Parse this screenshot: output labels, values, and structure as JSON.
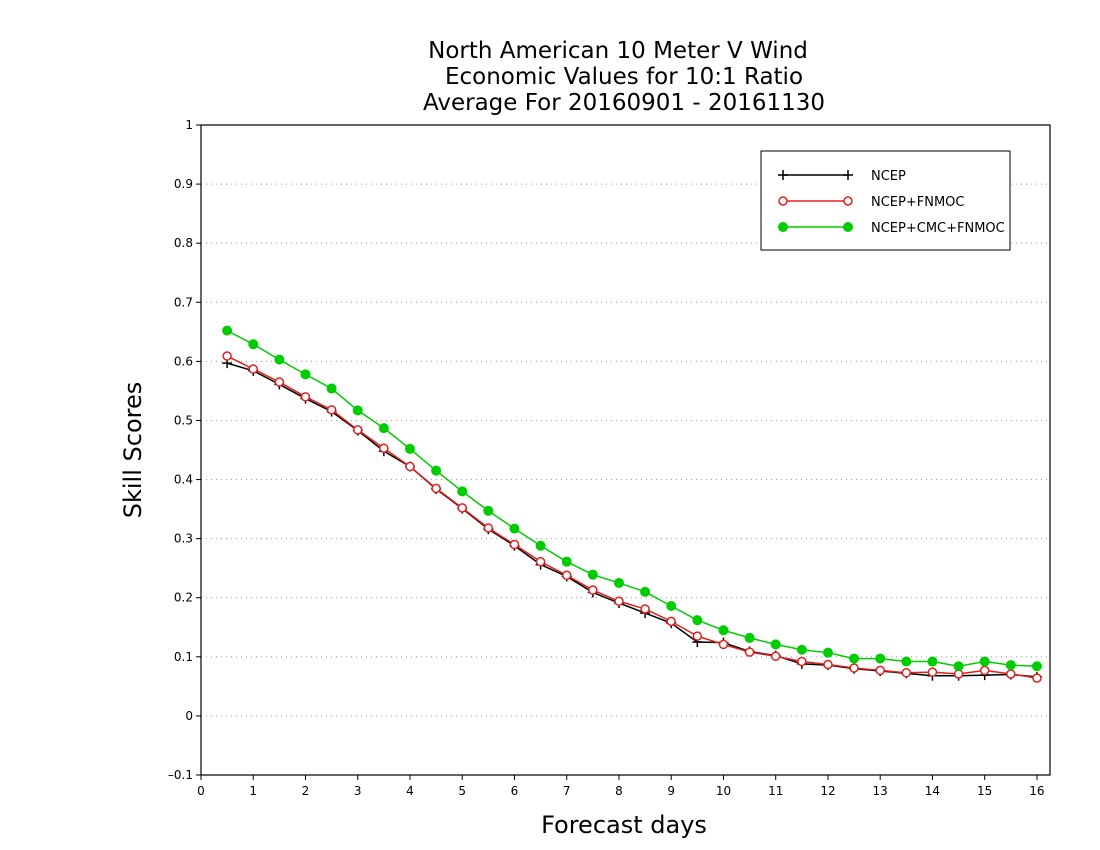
{
  "chart_data": {
    "type": "line",
    "title_lines": [
      "North American 10 Meter V Wind",
      "Economic Values for 10:1 Ratio",
      "Average For 20160901 - 20161130"
    ],
    "xlabel": "Forecast days",
    "ylabel": "Skill Scores",
    "xlim": [
      0,
      16.25
    ],
    "ylim": [
      -0.1,
      1
    ],
    "x_ticks": [
      0,
      1,
      2,
      3,
      4,
      5,
      6,
      7,
      8,
      9,
      10,
      11,
      12,
      13,
      14,
      15,
      16
    ],
    "y_ticks": [
      -0.1,
      0,
      0.1,
      0.2,
      0.3,
      0.4,
      0.5,
      0.6,
      0.7,
      0.8,
      0.9,
      1
    ],
    "y_tick_labels": [
      "–0.1",
      "0",
      "0.1",
      "0.2",
      "0.3",
      "0.4",
      "0.5",
      "0.6",
      "0.7",
      "0.8",
      "0.9",
      "1"
    ],
    "grid": "horizontal dotted",
    "legend_position": "top-right",
    "x": [
      0.5,
      1,
      1.5,
      2,
      2.5,
      3,
      3.5,
      4,
      4.5,
      5,
      5.5,
      6,
      6.5,
      7,
      7.5,
      8,
      8.5,
      9,
      9.5,
      10,
      10.5,
      11,
      11.5,
      12,
      12.5,
      13,
      13.5,
      14,
      14.5,
      15,
      15.5,
      16
    ],
    "series": [
      {
        "name": "NCEP",
        "color": "#000000",
        "marker": "plus",
        "values": [
          0.597,
          0.584,
          0.561,
          0.537,
          0.515,
          0.483,
          0.448,
          0.422,
          0.384,
          0.351,
          0.316,
          0.288,
          0.256,
          0.236,
          0.209,
          0.191,
          0.174,
          0.157,
          0.125,
          0.124,
          0.109,
          0.102,
          0.088,
          0.086,
          0.08,
          0.076,
          0.072,
          0.068,
          0.068,
          0.069,
          0.07,
          0.066
        ]
      },
      {
        "name": "NCEP+FNMOC",
        "color": "#e02020",
        "marker": "open-circle",
        "values": [
          0.609,
          0.587,
          0.565,
          0.54,
          0.518,
          0.484,
          0.453,
          0.422,
          0.385,
          0.352,
          0.318,
          0.29,
          0.261,
          0.238,
          0.213,
          0.194,
          0.181,
          0.16,
          0.135,
          0.121,
          0.108,
          0.101,
          0.092,
          0.087,
          0.081,
          0.077,
          0.073,
          0.074,
          0.071,
          0.077,
          0.071,
          0.064
        ]
      },
      {
        "name": "NCEP+CMC+FNMOC",
        "color": "#00cc00",
        "marker": "filled-circle",
        "values": [
          0.652,
          0.629,
          0.603,
          0.578,
          0.554,
          0.517,
          0.487,
          0.452,
          0.415,
          0.38,
          0.347,
          0.317,
          0.288,
          0.261,
          0.239,
          0.225,
          0.21,
          0.186,
          0.162,
          0.145,
          0.132,
          0.121,
          0.112,
          0.107,
          0.097,
          0.097,
          0.092,
          0.092,
          0.084,
          0.092,
          0.086,
          0.084
        ]
      }
    ]
  }
}
